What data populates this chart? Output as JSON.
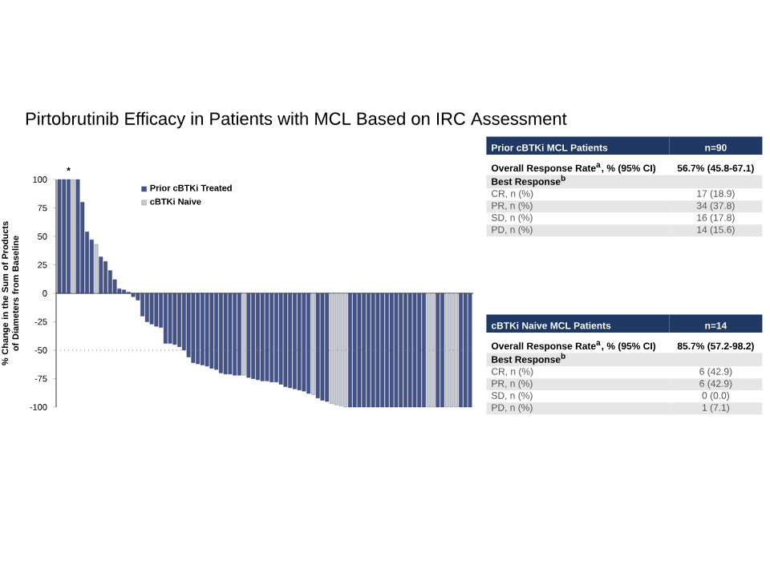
{
  "chart_data": [
    {
      "type": "bar",
      "title": "Pirtobrutinib Efficacy in Patients with MCL Based on IRC Assessment",
      "ylabel": "% Change in the Sum of Products of Diameters from Baseline",
      "categories": [
        null,
        null,
        null,
        null,
        null,
        null,
        null,
        null,
        null,
        null,
        null,
        null,
        null,
        null,
        null,
        null,
        null,
        null,
        null,
        null,
        null,
        null,
        null,
        null,
        null,
        null,
        null,
        null,
        null,
        null,
        null,
        null,
        null,
        null,
        null,
        null,
        null,
        null,
        null,
        null,
        null,
        null,
        null,
        null,
        null,
        null,
        null,
        null,
        null,
        null,
        null,
        null,
        null,
        null,
        null,
        null,
        null,
        null,
        null,
        null,
        null,
        null,
        null,
        null,
        null,
        null,
        null,
        null,
        null,
        null,
        null,
        null,
        null,
        null,
        null,
        null,
        null,
        null,
        null,
        null,
        null,
        null,
        null,
        null,
        null,
        null,
        null,
        null,
        null,
        null
      ],
      "series": [
        {
          "name": "Prior cBTKi Treated",
          "color": "#44548a",
          "values": [
            100,
            100,
            100,
            null,
            100,
            80,
            54,
            47,
            null,
            32,
            28,
            20,
            12,
            4,
            3,
            1,
            -3,
            -6,
            -20,
            -25,
            -27,
            -29,
            -30,
            -44,
            -44,
            -45,
            -47,
            -50,
            -56,
            -61,
            -62,
            -63,
            -64,
            -66,
            -67,
            -70,
            -71,
            -71,
            -72,
            -72,
            null,
            -74,
            -75,
            -76,
            -77,
            -77,
            -78,
            -78,
            -80,
            -82,
            -83,
            -84,
            -85,
            -86,
            -88,
            null,
            -92,
            -94,
            -95,
            null,
            null,
            null,
            null,
            -100,
            -100,
            -100,
            -100,
            -100,
            -100,
            -100,
            -100,
            -100,
            -100,
            -100,
            -100,
            -100,
            -100,
            -100,
            -100,
            -100,
            null,
            null,
            -100,
            -100,
            null,
            null,
            null,
            -100,
            -100,
            -100
          ]
        },
        {
          "name": "cBTKi Naive",
          "color": "#c5c9d3",
          "values": [
            null,
            null,
            null,
            100,
            null,
            null,
            null,
            null,
            43,
            null,
            null,
            null,
            null,
            null,
            null,
            null,
            null,
            null,
            null,
            null,
            null,
            null,
            null,
            null,
            null,
            null,
            null,
            null,
            null,
            null,
            null,
            null,
            null,
            null,
            null,
            null,
            null,
            null,
            null,
            null,
            -72,
            null,
            null,
            null,
            null,
            null,
            null,
            null,
            null,
            null,
            null,
            null,
            null,
            null,
            null,
            -89,
            null,
            null,
            null,
            -97,
            -98,
            -99,
            -100,
            null,
            null,
            null,
            null,
            null,
            null,
            null,
            null,
            null,
            null,
            null,
            null,
            null,
            null,
            null,
            null,
            null,
            -100,
            -100,
            null,
            null,
            -100,
            -100,
            -100,
            null,
            null,
            null
          ]
        }
      ],
      "ylim": [
        -100,
        100
      ],
      "yticks": [
        -100,
        -75,
        -50,
        -25,
        0,
        25,
        50,
        75,
        100
      ],
      "ref_lines": [
        {
          "axis": "y",
          "value": -50,
          "color": "#808080",
          "line_style": "dotted"
        }
      ],
      "annotations": [
        "*"
      ],
      "legend": "top left"
    },
    {
      "type": "other",
      "title": "Prior cBTKi MCL Patients",
      "subtitle": "n=90",
      "annotations": [
        "Overall Response Rate$^{a}$, % (95% CI)",
        "56.7% (45.8-67.1)",
        "Best Response$^{b}$",
        "CR, n (%)",
        "17 (18.9)",
        "PR, n (%)",
        "34 (37.8)",
        "SD, n (%)",
        "16 (17.8)",
        "PD, n (%)",
        "14 (15.6)"
      ]
    },
    {
      "type": "other",
      "title": "cBTKi Naive MCL Patients",
      "subtitle": "n=14",
      "annotations": [
        "Overall Response Rate$^{a}$, % (95% CI)",
        "85.7% (57.2-98.2)",
        "Best Response$^{b}$",
        "CR, n (%)",
        "6 (42.9)",
        "PR, n (%)",
        "6 (42.9)",
        "SD, n (%)",
        "0 (0.0)",
        "PD, n (%)",
        "1 (7.1)"
      ]
    }
  ]
}
